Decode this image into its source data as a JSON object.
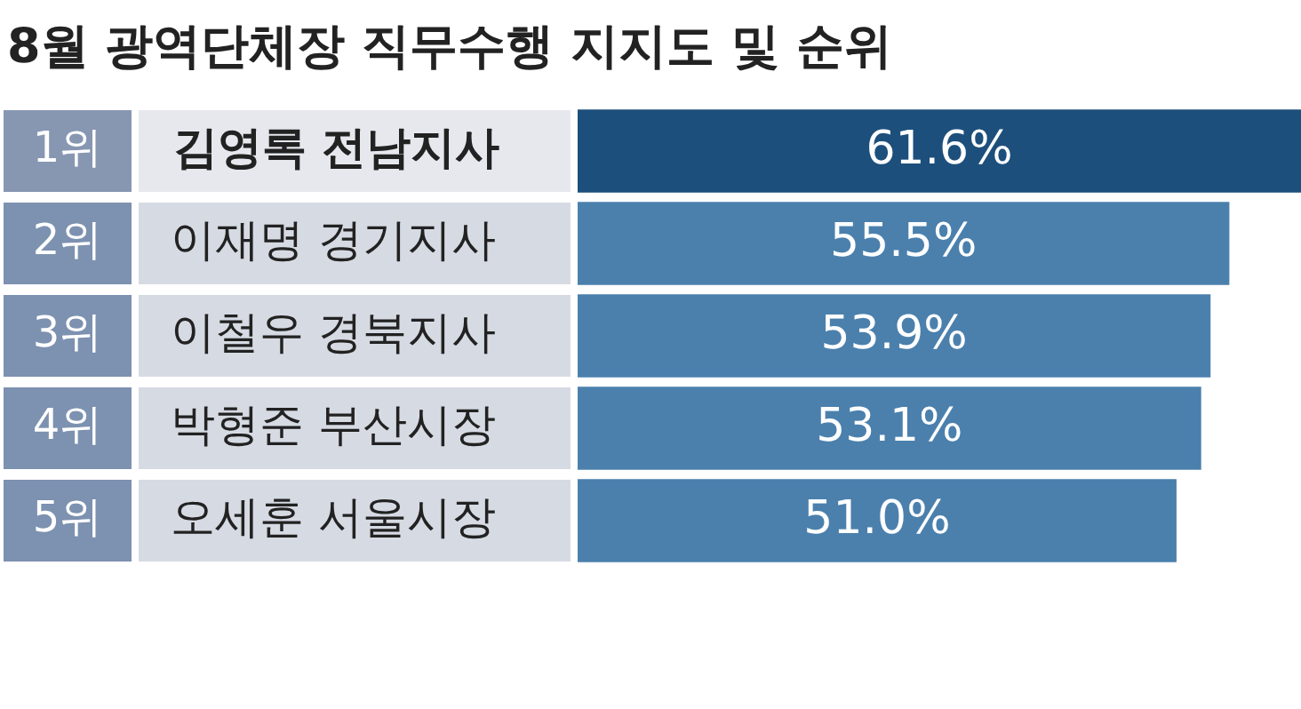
{
  "chart_data": {
    "type": "bar",
    "orientation": "horizontal",
    "title": "8월 광역단체장 직무수행 지지도 및 순위",
    "categories": [
      "김영록 전남지사",
      "이재명 경기지사",
      "이철우 경북지사",
      "박형준 부산시장",
      "오세훈 서울시장"
    ],
    "values": [
      61.6,
      55.5,
      53.9,
      53.1,
      51.0
    ],
    "colors": [
      "#1d4f7c",
      "#4b80ad",
      "#4b80ad",
      "#4b80ad",
      "#4b80ad"
    ],
    "value_labels": [
      "61.6%",
      "55.5%",
      "53.9%",
      "53.1%",
      "51.0%"
    ],
    "annotations": [
      "1위",
      "2위",
      "3위",
      "4위",
      "5위"
    ],
    "grid": false,
    "legend": false
  }
}
